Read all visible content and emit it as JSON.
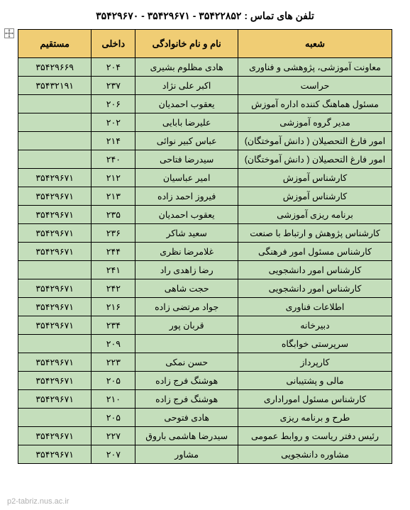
{
  "title": "تلفن های تماس : ۳۵۴۲۲۸۵۲ - ۳۵۴۲۹۶۷۱ - ۳۵۴۲۹۶۷۰",
  "footer_url": "p2-tabriz.nus.ac.ir",
  "headers": {
    "branch": "شعبه",
    "name": "نام و نام خانوادگی",
    "ext": "داخلی",
    "direct": "مستقیم"
  },
  "rows": [
    {
      "branch": "معاونت آموزشی، پژوهشی و فناوری",
      "name": "هادی مظلوم بشیری",
      "ext": "۲۰۴",
      "direct": "۳۵۴۲۹۶۶۹"
    },
    {
      "branch": "حراست",
      "name": "اکبر علی نژاد",
      "ext": "۲۳۷",
      "direct": "۳۵۴۳۲۱۹۱"
    },
    {
      "branch": "مسئول هماهنگ کننده  اداره آموزش",
      "name": "یعقوب احمدیان",
      "ext": "۲۰۶",
      "direct": ""
    },
    {
      "branch": "مدیر گروه آموزشی",
      "name": "علیرضا بابایی",
      "ext": "۲۰۲",
      "direct": ""
    },
    {
      "branch": "امور فارغ التحصیلان ( دانش آموختگان)",
      "name": "عباس کبیر نوائی",
      "ext": "۲۱۴",
      "direct": ""
    },
    {
      "branch": "امور فارغ التحصیلان ( دانش آموختگان)",
      "name": "سیدرضا فتاحی",
      "ext": "۲۴۰",
      "direct": ""
    },
    {
      "branch": "کارشناس آموزش",
      "name": "امیر عباسیان",
      "ext": "۲۱۲",
      "direct": "۳۵۴۲۹۶۷۱"
    },
    {
      "branch": "کارشناس آموزش",
      "name": "فیروز احمد زاده",
      "ext": "۲۱۳",
      "direct": "۳۵۴۲۹۶۷۱"
    },
    {
      "branch": "برنامه ریزی  آموزشی",
      "name": "یعقوب احمدیان",
      "ext": "۲۳۵",
      "direct": "۳۵۴۲۹۶۷۱"
    },
    {
      "branch": "کارشناس پژوهش و ارتباط با صنعت",
      "name": "سعید شاکر",
      "ext": "۲۳۶",
      "direct": "۳۵۴۲۹۶۷۱"
    },
    {
      "branch": "کارشناس مسئول امور فرهنگی",
      "name": "غلامرضا نظری",
      "ext": "۲۴۴",
      "direct": "۳۵۴۲۹۶۷۱"
    },
    {
      "branch": "کارشناس امور دانشجویی",
      "name": "رضا زاهدی راد",
      "ext": "۲۴۱",
      "direct": ""
    },
    {
      "branch": "کارشناس امور دانشجویی",
      "name": "حجت شاهی",
      "ext": "۲۴۲",
      "direct": "۳۵۴۲۹۶۷۱"
    },
    {
      "branch": "اطلاعات فناوری",
      "name": "جواد مرتضی زاده",
      "ext": "۲۱۶",
      "direct": "۳۵۴۲۹۶۷۱"
    },
    {
      "branch": "دبیرخانه",
      "name": "قربان پور",
      "ext": "۲۳۴",
      "direct": "۳۵۴۲۹۶۷۱"
    },
    {
      "branch": "سرپرستی خوابگاه",
      "name": "",
      "ext": "۲۰۹",
      "direct": ""
    },
    {
      "branch": "کارپرداز",
      "name": "حسن نمکی",
      "ext": "۲۲۳",
      "direct": "۳۵۴۲۹۶۷۱"
    },
    {
      "branch": "مالی و پشتیبانی",
      "name": "هوشنگ فرج زاده",
      "ext": "۲۰۵",
      "direct": "۳۵۴۲۹۶۷۱"
    },
    {
      "branch": "کارشناس مسئول اموراداری",
      "name": "هوشنگ فرج زاده",
      "ext": "۲۱۰",
      "direct": "۳۵۴۲۹۶۷۱"
    },
    {
      "branch": "طرح و برنامه ریزی",
      "name": "هادی فتوحی",
      "ext": "۲۰۵",
      "direct": ""
    },
    {
      "branch": "رئیس دفتر ریاست و روابط عمومی",
      "name": "سیدرضا هاشمی باروق",
      "ext": "۲۲۷",
      "direct": "۳۵۴۲۹۶۷۱"
    },
    {
      "branch": "مشاوره دانشجویی",
      "name": "مشاور",
      "ext": "۲۰۷",
      "direct": "۳۵۴۲۹۶۷۱"
    }
  ]
}
